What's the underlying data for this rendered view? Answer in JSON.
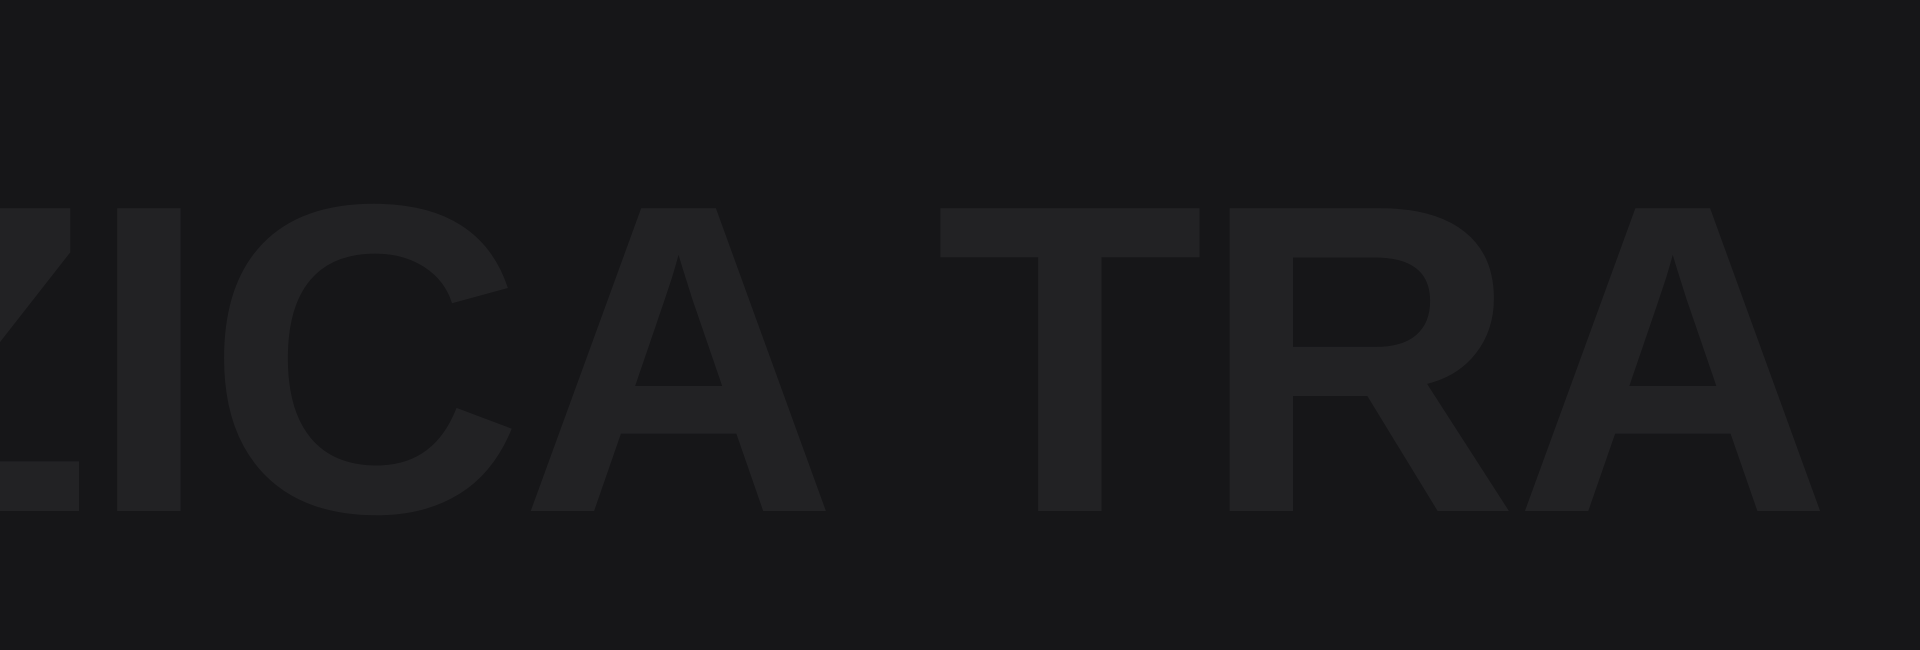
{
  "hero": {
    "text": "ZICA TRA"
  },
  "colors": {
    "background": "#161618",
    "text": "#222224"
  }
}
